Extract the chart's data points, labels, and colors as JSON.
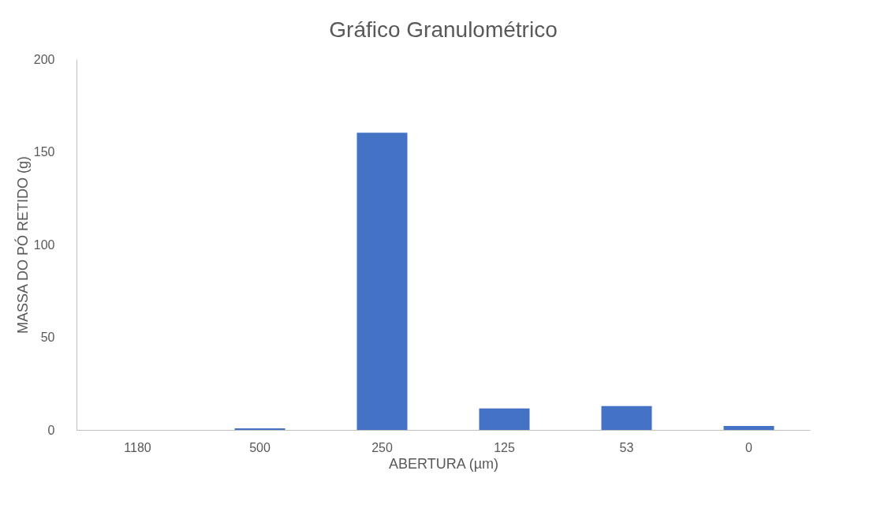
{
  "chart_data": {
    "type": "bar",
    "title": "Gráfico Granulométrico",
    "xlabel": "ABERTURA (µm)",
    "ylabel": "MASSA DO PÓ RETIDO (g)",
    "categories": [
      "1180",
      "500",
      "250",
      "125",
      "53",
      "0"
    ],
    "values": [
      0,
      0.9,
      160.3,
      11.6,
      12.9,
      2.1
    ],
    "color": "#4472c4",
    "ylim": [
      0,
      200
    ],
    "yticks": [
      0,
      50,
      100,
      150,
      200
    ],
    "grid": false
  }
}
